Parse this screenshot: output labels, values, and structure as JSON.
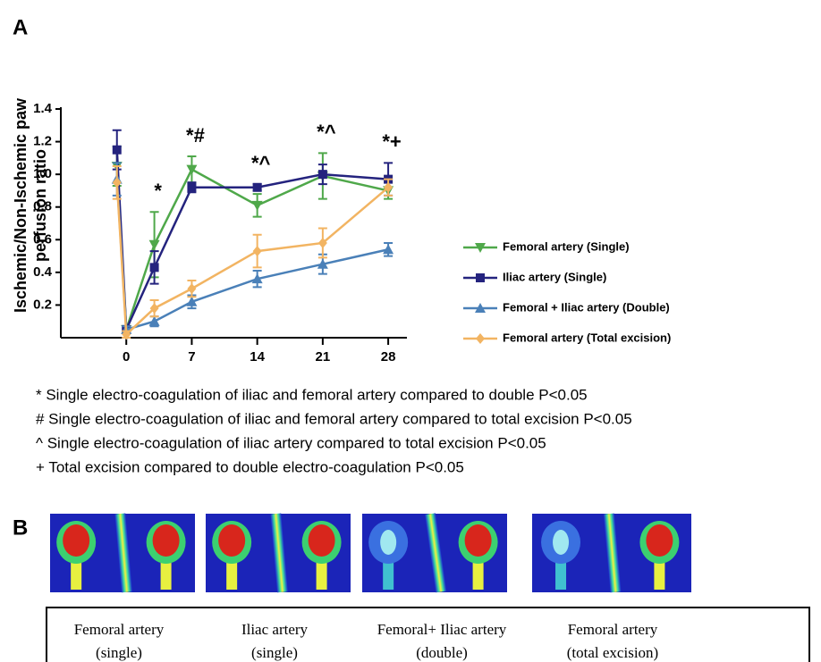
{
  "panel_labels": [
    "A",
    "B"
  ],
  "chart_data": {
    "type": "line",
    "ylabel_lines": [
      "Ischemic/Non-Ischemic paw",
      "perfusion ratio"
    ],
    "x": [
      -1,
      0,
      3,
      7,
      14,
      21,
      28
    ],
    "xlim": [
      -7,
      30
    ],
    "xticks": [
      0,
      7,
      14,
      21,
      28
    ],
    "ylim": [
      0,
      1.4
    ],
    "yticks": [
      0.2,
      0.4,
      0.6,
      0.8,
      {
        "value": 1,
        "label": "1.0"
      },
      1.2,
      1.4
    ],
    "series": [
      {
        "name": "Femoral artery (Single)",
        "color": "#4fa84a",
        "marker": "triangle-down",
        "values": [
          1.05,
          0.05,
          0.57,
          1.03,
          0.81,
          0.99,
          0.9
        ],
        "errors": [
          0.12,
          0.02,
          0.2,
          0.08,
          0.07,
          0.14,
          0.05
        ]
      },
      {
        "name": "Iliac artery (Single)",
        "color": "#24237e",
        "marker": "square",
        "values": [
          1.15,
          0.05,
          0.43,
          0.92,
          0.92,
          1.0,
          0.97
        ],
        "errors": [
          0.12,
          0.02,
          0.1,
          0.03,
          0.02,
          0.06,
          0.1
        ]
      },
      {
        "name": "Femoral + Iliac artery (Double)",
        "color": "#4a80b8",
        "marker": "triangle-up",
        "values": [
          0.97,
          0.05,
          0.1,
          0.22,
          0.36,
          0.45,
          0.54
        ],
        "errors": [
          0.1,
          0.02,
          0.03,
          0.04,
          0.05,
          0.06,
          0.04
        ]
      },
      {
        "name": "Femoral artery (Total excision)",
        "color": "#f2b462",
        "marker": "diamond",
        "values": [
          0.95,
          0.02,
          0.18,
          0.3,
          0.53,
          0.58,
          0.92
        ],
        "errors": [
          0.1,
          0.02,
          0.05,
          0.05,
          0.1,
          0.09,
          0.05
        ]
      }
    ],
    "annotations": [
      {
        "text": "*",
        "x": 3
      },
      {
        "text": "*#",
        "x": 7
      },
      {
        "text": "*^",
        "x": 14
      },
      {
        "text": "*^",
        "x": 21
      },
      {
        "text": "*+",
        "x": 28
      }
    ]
  },
  "footnotes": [
    "* Single electro-coagulation of iliac and femoral artery compared to double P<0.05",
    "# Single electro-coagulation of iliac and femoral artery compared to total excision P<0.05",
    "^ Single electro-coagulation of iliac artery compared to total excision P<0.05",
    "+ Total excision compared to double electro-coagulation P<0.05"
  ],
  "images": [
    {
      "caption": [
        "Femoral artery",
        "(single)"
      ]
    },
    {
      "caption": [
        "Iliac artery",
        "(single)"
      ]
    },
    {
      "caption": [
        "Femoral+ Iliac artery",
        "(double)"
      ]
    },
    {
      "caption": [
        "Femoral artery",
        "(total excision)"
      ]
    }
  ]
}
